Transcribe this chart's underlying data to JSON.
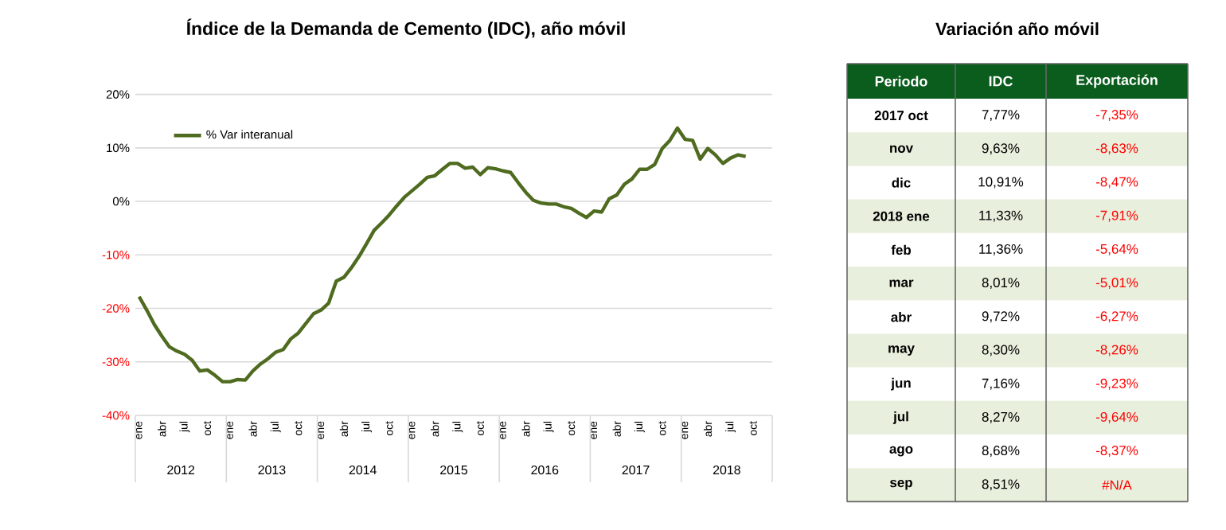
{
  "chart_data": [
    {
      "type": "line",
      "title": "Índice de la Demanda de Cemento (IDC), año móvil",
      "categories": [
        "ene",
        null,
        null,
        "abr",
        null,
        null,
        "jul",
        null,
        null,
        "oct",
        null,
        null,
        "ene",
        null,
        null,
        "abr",
        null,
        null,
        "jul",
        null,
        null,
        "oct",
        null,
        null,
        "ene",
        null,
        null,
        "abr",
        null,
        null,
        "jul",
        null,
        null,
        "oct",
        null,
        null,
        "ene",
        null,
        null,
        "abr",
        null,
        null,
        "jul",
        null,
        null,
        "oct",
        null,
        null,
        "ene",
        null,
        null,
        "abr",
        null,
        null,
        "jul",
        null,
        null,
        "oct",
        null,
        null,
        "ene",
        null,
        null,
        "abr",
        null,
        null,
        "jul",
        null,
        null,
        "oct",
        null,
        null,
        "ene",
        null,
        null,
        "abr",
        null,
        null,
        "jul",
        null,
        null,
        "oct",
        null,
        null
      ],
      "series": [
        {
          "name": "% Var interanual",
          "color": "#4e6b1f",
          "values": [
            -17.8,
            -20.3,
            -23.0,
            -25.2,
            -27.2,
            -28.0,
            -28.6,
            -29.7,
            -31.7,
            -31.5,
            -32.5,
            -33.7,
            -33.7,
            -33.3,
            -33.4,
            -31.7,
            -30.4,
            -29.4,
            -28.2,
            -27.7,
            -25.7,
            -24.6,
            -22.8,
            -21.0,
            -20.3,
            -19.0,
            -14.9,
            -14.2,
            -12.4,
            -10.3,
            -7.9,
            -5.4,
            -4.0,
            -2.5,
            -0.8,
            0.8,
            2.0,
            3.2,
            4.5,
            4.8,
            6.0,
            7.1,
            7.1,
            6.2,
            6.4,
            5.0,
            6.3,
            6.1,
            5.7,
            5.4,
            3.5,
            1.7,
            0.2,
            -0.3,
            -0.5,
            -0.5,
            -1.0,
            -1.3,
            -2.2,
            -3.0,
            -1.8,
            -2.0,
            0.5,
            1.2,
            3.2,
            4.2,
            6.0,
            6.0,
            6.9,
            9.9,
            11.4,
            13.7,
            11.6,
            11.4,
            7.9,
            9.9,
            8.7,
            7.1,
            8.1,
            8.7,
            8.4,
            null,
            null,
            null
          ]
        }
      ],
      "ylim": [
        -40,
        20
      ],
      "yticks": [
        {
          "value": -40,
          "label": "-40%"
        },
        {
          "value": -30,
          "label": "-30%"
        },
        {
          "value": -20,
          "label": "-20%"
        },
        {
          "value": -10,
          "label": "-10%"
        },
        {
          "value": 0,
          "label": "0%"
        },
        {
          "value": 10,
          "label": "10%"
        },
        {
          "value": 20,
          "label": "20%"
        }
      ],
      "grid": "y",
      "legend": "top left",
      "annotations": [
        "2012",
        "2013",
        "2014",
        "2015",
        "2016",
        "2017",
        "2018"
      ]
    },
    {
      "type": "other",
      "title": "Variación año móvil",
      "annotations": [
        "Periodo",
        "IDC",
        "Exportación",
        "2017 oct",
        "7,77%",
        "-7,35%",
        "nov",
        "9,63%",
        "-8,63%",
        "dic",
        "10,91%",
        "-8,47%",
        "2018 ene",
        "11,33%",
        "-7,91%",
        "feb",
        "11,36%",
        "-5,64%",
        "mar",
        "8,01%",
        "-5,01%",
        "abr",
        "9,72%",
        "-6,27%",
        "may",
        "8,30%",
        "-8,26%",
        "jun",
        "7,16%",
        "-9,23%",
        "jul",
        "8,27%",
        "-9,64%",
        "ago",
        "8,68%",
        "-8,37%",
        "sep",
        "8,51%",
        "#N/A"
      ]
    }
  ]
}
